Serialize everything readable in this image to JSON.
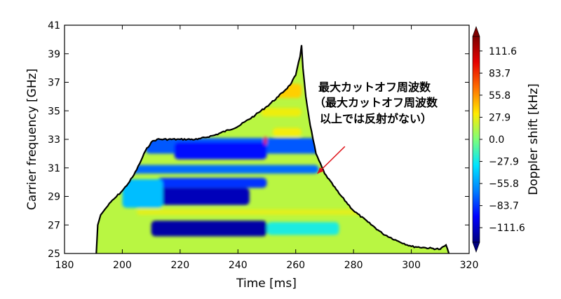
{
  "chart_data": {
    "type": "heatmap",
    "title": "",
    "xlabel": "Time [ms]",
    "ylabel": "Carrier frequency [GHz]",
    "xlim": [
      180,
      320
    ],
    "ylim": [
      25,
      41
    ],
    "x_ticks": [
      "180",
      "200",
      "220",
      "240",
      "260",
      "280",
      "300",
      "320"
    ],
    "y_ticks": [
      "25",
      "27",
      "29",
      "31",
      "33",
      "35",
      "37",
      "39",
      "41"
    ],
    "colorbar": {
      "label": "Doppler shift [kHz]",
      "range": [
        -130,
        130
      ],
      "ticks": [
        "111.6",
        "83.7",
        "55.8",
        "27.9",
        "0.0",
        "−27.9",
        "−55.8",
        "−83.7",
        "−111.6"
      ],
      "tick_values": [
        111.6,
        83.7,
        55.8,
        27.9,
        0.0,
        -27.9,
        -55.8,
        -83.7,
        -111.6
      ],
      "colormap": [
        "#00007f",
        "#0000ff",
        "#0080ff",
        "#00e5ff",
        "#7dff7a",
        "#ffeb00",
        "#ff7000",
        "#e60000",
        "#7f0000"
      ]
    },
    "cutoff_boundary": [
      {
        "t": 191,
        "f": 25.0
      },
      {
        "t": 191.5,
        "f": 27.0
      },
      {
        "t": 192.5,
        "f": 27.7
      },
      {
        "t": 194,
        "f": 28.1
      },
      {
        "t": 196,
        "f": 28.6
      },
      {
        "t": 198,
        "f": 29.0
      },
      {
        "t": 200,
        "f": 29.4
      },
      {
        "t": 202,
        "f": 29.9
      },
      {
        "t": 204,
        "f": 30.5
      },
      {
        "t": 206,
        "f": 31.3
      },
      {
        "t": 208,
        "f": 32.2
      },
      {
        "t": 210,
        "f": 32.8
      },
      {
        "t": 212,
        "f": 33.0
      },
      {
        "t": 220,
        "f": 33.0
      },
      {
        "t": 226,
        "f": 33.0
      },
      {
        "t": 232,
        "f": 33.3
      },
      {
        "t": 240,
        "f": 33.9
      },
      {
        "t": 246,
        "f": 34.7
      },
      {
        "t": 250,
        "f": 35.3
      },
      {
        "t": 254,
        "f": 36.0
      },
      {
        "t": 258,
        "f": 36.8
      },
      {
        "t": 260,
        "f": 37.5
      },
      {
        "t": 261.5,
        "f": 38.8
      },
      {
        "t": 262,
        "f": 39.6
      },
      {
        "t": 262.5,
        "f": 38.0
      },
      {
        "t": 263.5,
        "f": 36.0
      },
      {
        "t": 265,
        "f": 34.0
      },
      {
        "t": 267,
        "f": 32.0
      },
      {
        "t": 270,
        "f": 30.6
      },
      {
        "t": 275,
        "f": 29.2
      },
      {
        "t": 280,
        "f": 28.0
      },
      {
        "t": 285,
        "f": 27.2
      },
      {
        "t": 290,
        "f": 26.4
      },
      {
        "t": 295,
        "f": 25.9
      },
      {
        "t": 300,
        "f": 25.5
      },
      {
        "t": 305,
        "f": 25.4
      },
      {
        "t": 310,
        "f": 25.3
      },
      {
        "t": 312,
        "f": 25.6
      },
      {
        "t": 313,
        "f": 25.0
      }
    ],
    "regions": [
      {
        "t0": 208,
        "t1": 270,
        "f0": 32.0,
        "f1": 33.1,
        "value": -75
      },
      {
        "t0": 218,
        "t1": 250,
        "f0": 31.6,
        "f1": 32.8,
        "value": -95
      },
      {
        "t0": 200,
        "t1": 268,
        "f0": 30.6,
        "f1": 31.2,
        "value": -70
      },
      {
        "t0": 212,
        "t1": 250,
        "f0": 29.6,
        "f1": 30.3,
        "value": -85
      },
      {
        "t0": 212,
        "t1": 244,
        "f0": 28.4,
        "f1": 29.6,
        "value": -115
      },
      {
        "t0": 200,
        "t1": 214,
        "f0": 28.2,
        "f1": 30.2,
        "value": -45
      },
      {
        "t0": 205,
        "t1": 300,
        "f0": 27.7,
        "f1": 28.1,
        "value": 25
      },
      {
        "t0": 210,
        "t1": 250,
        "f0": 26.2,
        "f1": 27.3,
        "value": -120
      },
      {
        "t0": 250,
        "t1": 275,
        "f0": 26.3,
        "f1": 27.2,
        "value": -25
      },
      {
        "t0": 240,
        "t1": 262,
        "f0": 35.9,
        "f1": 36.9,
        "value": 40
      },
      {
        "t0": 248,
        "t1": 262,
        "f0": 34.6,
        "f1": 35.2,
        "value": 28
      },
      {
        "t0": 252,
        "t1": 262,
        "f0": 33.2,
        "f1": 33.8,
        "value": 30
      },
      {
        "t0": 255,
        "t1": 257,
        "f0": 36.5,
        "f1": 37.2,
        "value": 110
      },
      {
        "t0": 249,
        "t1": 250,
        "f0": 32.6,
        "f1": 33.2,
        "value": 100
      }
    ],
    "annotation": {
      "lines": [
        "最大カットオフ周波数",
        "（最大カットオフ周波数",
        "以上では反射がない）"
      ],
      "arrow_from": {
        "t": 277,
        "f": 32.5
      },
      "arrow_to": {
        "t": 267.5,
        "f": 30.6
      },
      "arrow_color": "#e0161c"
    },
    "background_value": 15,
    "boundary_color": "#000000"
  }
}
